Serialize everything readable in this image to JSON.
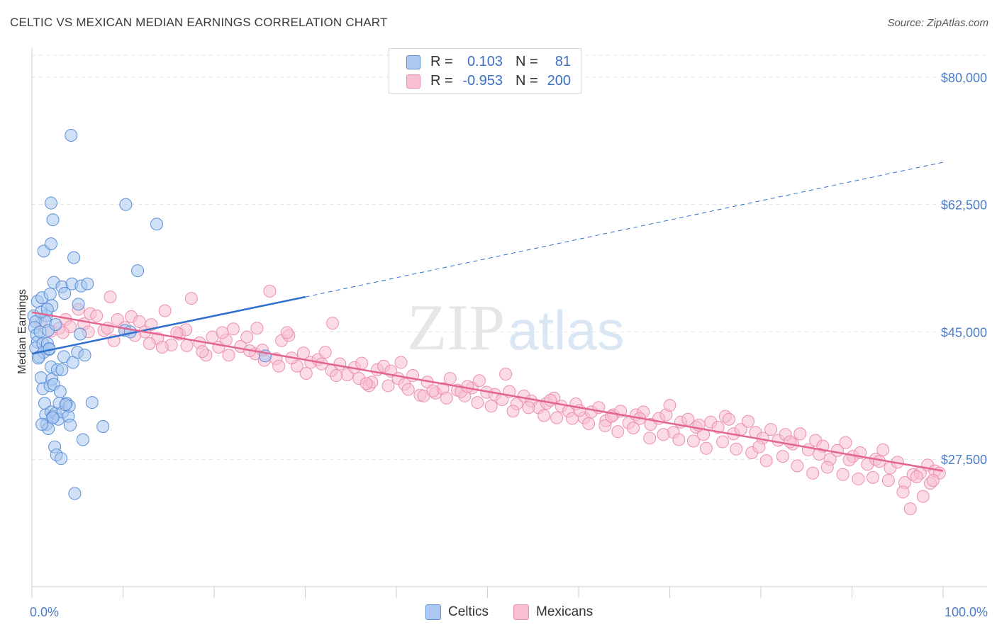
{
  "header": {
    "title": "CELTIC VS MEXICAN MEDIAN EARNINGS CORRELATION CHART",
    "source": "Source: ZipAtlas.com"
  },
  "colors": {
    "celtics_fill": "#aac8f0",
    "celtics_stroke": "#5b8fd6",
    "celtics_line": "#2f6fce",
    "mexicans_fill": "#f7bfd0",
    "mexicans_stroke": "#ec8fae",
    "mexicans_line": "#e2648f",
    "axis_text": "#4a7cc7",
    "grid": "#e3e3e3"
  },
  "legend": {
    "rows": [
      {
        "r_label": "R =",
        "r_value": "0.103",
        "n_label": "N =",
        "n_value": "81"
      },
      {
        "r_label": "R =",
        "r_value": "-0.953",
        "n_label": "N =",
        "n_value": "200"
      }
    ]
  },
  "bottom_legend": [
    "Celtics",
    "Mexicans"
  ],
  "watermark": {
    "zip": "ZIP",
    "atlas": "atlas"
  },
  "chart_data": {
    "type": "scatter",
    "xlabel": "",
    "ylabel": "Median Earnings",
    "xlim": [
      0,
      100
    ],
    "ylim": [
      10000,
      83000
    ],
    "x_tick_labels": [
      "0.0%",
      "100.0%"
    ],
    "y_ticks": [
      27500,
      45000,
      62500,
      80000
    ],
    "y_tick_labels": [
      "$27,500",
      "$45,000",
      "$62,500",
      "$80,000"
    ],
    "grid": "horizontal dashed",
    "legend_placement": "top-center",
    "series": [
      {
        "name": "Celtics",
        "r": 0.103,
        "n": 81,
        "trend": {
          "x": [
            0,
            30
          ],
          "y": [
            42000,
            49800
          ],
          "extended_to": [
            100,
            68300
          ]
        },
        "points": [
          [
            0.2,
            47.2
          ],
          [
            0.4,
            46.4
          ],
          [
            0.3,
            45.6
          ],
          [
            0.5,
            44.6
          ],
          [
            0.6,
            43.6
          ],
          [
            0.4,
            42.8
          ],
          [
            0.8,
            41.6
          ],
          [
            0.6,
            49.2
          ],
          [
            1.1,
            49.7
          ],
          [
            0.9,
            45.0
          ],
          [
            1.2,
            43.4
          ],
          [
            1.3,
            42.2
          ],
          [
            1.0,
            38.7
          ],
          [
            1.2,
            37.2
          ],
          [
            1.3,
            56.1
          ],
          [
            1.6,
            47.2
          ],
          [
            1.5,
            46.4
          ],
          [
            1.8,
            45.2
          ],
          [
            1.7,
            43.4
          ],
          [
            1.9,
            42.6
          ],
          [
            2.1,
            40.2
          ],
          [
            1.4,
            35.2
          ],
          [
            1.5,
            33.6
          ],
          [
            1.6,
            32.3
          ],
          [
            1.8,
            31.7
          ],
          [
            2.0,
            37.6
          ],
          [
            2.2,
            38.5
          ],
          [
            2.4,
            37.8
          ],
          [
            2.1,
            34.0
          ],
          [
            2.3,
            33.4
          ],
          [
            2.6,
            33.8
          ],
          [
            2.8,
            39.8
          ],
          [
            2.0,
            50.2
          ],
          [
            2.2,
            48.6
          ],
          [
            2.6,
            46.0
          ],
          [
            2.1,
            57.1
          ],
          [
            2.3,
            60.4
          ],
          [
            2.1,
            62.7
          ],
          [
            2.4,
            51.8
          ],
          [
            2.5,
            29.2
          ],
          [
            2.7,
            28.1
          ],
          [
            2.9,
            33.0
          ],
          [
            3.0,
            35.2
          ],
          [
            3.1,
            36.8
          ],
          [
            3.3,
            39.8
          ],
          [
            3.5,
            41.6
          ],
          [
            3.3,
            51.2
          ],
          [
            3.6,
            50.3
          ],
          [
            3.2,
            27.6
          ],
          [
            3.4,
            34.0
          ],
          [
            3.8,
            35.2
          ],
          [
            4.0,
            33.4
          ],
          [
            4.2,
            32.2
          ],
          [
            4.1,
            34.8
          ],
          [
            4.4,
            51.6
          ],
          [
            4.5,
            40.8
          ],
          [
            4.6,
            55.2
          ],
          [
            4.7,
            22.8
          ],
          [
            5.0,
            42.2
          ],
          [
            5.1,
            48.8
          ],
          [
            5.3,
            44.7
          ],
          [
            5.6,
            30.2
          ],
          [
            5.4,
            51.3
          ],
          [
            5.8,
            41.8
          ],
          [
            6.1,
            51.6
          ],
          [
            6.6,
            35.3
          ],
          [
            7.8,
            32.0
          ],
          [
            4.3,
            72.0
          ],
          [
            10.2,
            45.2
          ],
          [
            10.3,
            62.5
          ],
          [
            10.8,
            45.0
          ],
          [
            13.7,
            59.8
          ],
          [
            11.6,
            53.4
          ],
          [
            25.6,
            41.7
          ],
          [
            1.0,
            47.7
          ],
          [
            1.7,
            48.1
          ],
          [
            0.7,
            41.4
          ],
          [
            1.9,
            42.7
          ],
          [
            2.3,
            33.2
          ],
          [
            3.7,
            35.0
          ],
          [
            1.1,
            32.3
          ]
        ]
      },
      {
        "name": "Mexicans",
        "r": -0.953,
        "n": 200,
        "trend": {
          "x": [
            0,
            100
          ],
          "y": [
            47700,
            25900
          ]
        },
        "points": [
          [
            1.0,
            46.3
          ],
          [
            2.1,
            45.1
          ],
          [
            3.0,
            45.5
          ],
          [
            3.7,
            46.7
          ],
          [
            4.2,
            45.7
          ],
          [
            5.1,
            48.1
          ],
          [
            5.7,
            46.1
          ],
          [
            6.4,
            47.5
          ],
          [
            7.1,
            47.2
          ],
          [
            7.9,
            45.2
          ],
          [
            8.6,
            49.8
          ],
          [
            9.4,
            46.7
          ],
          [
            10.2,
            45.6
          ],
          [
            10.9,
            47.1
          ],
          [
            11.8,
            46.4
          ],
          [
            12.4,
            45.0
          ],
          [
            13.1,
            46.0
          ],
          [
            13.8,
            44.1
          ],
          [
            14.6,
            47.9
          ],
          [
            15.3,
            43.2
          ],
          [
            16.2,
            44.7
          ],
          [
            16.9,
            45.3
          ],
          [
            17.5,
            49.6
          ],
          [
            18.4,
            43.5
          ],
          [
            19.1,
            41.8
          ],
          [
            19.8,
            44.3
          ],
          [
            20.5,
            42.9
          ],
          [
            21.3,
            43.9
          ],
          [
            22.1,
            45.4
          ],
          [
            22.9,
            43.0
          ],
          [
            23.6,
            44.3
          ],
          [
            24.5,
            42.0
          ],
          [
            25.3,
            42.5
          ],
          [
            26.1,
            50.6
          ],
          [
            26.8,
            41.3
          ],
          [
            27.4,
            43.8
          ],
          [
            28.2,
            44.5
          ],
          [
            29.1,
            40.3
          ],
          [
            29.8,
            42.1
          ],
          [
            30.6,
            40.8
          ],
          [
            31.4,
            41.2
          ],
          [
            32.2,
            42.2
          ],
          [
            32.9,
            39.7
          ],
          [
            33.8,
            40.6
          ],
          [
            34.6,
            39.1
          ],
          [
            35.4,
            40.1
          ],
          [
            36.2,
            40.7
          ],
          [
            37.0,
            37.6
          ],
          [
            37.9,
            39.8
          ],
          [
            38.6,
            40.3
          ],
          [
            39.4,
            39.6
          ],
          [
            40.2,
            38.6
          ],
          [
            40.9,
            37.8
          ],
          [
            41.8,
            39.0
          ],
          [
            42.6,
            36.3
          ],
          [
            43.4,
            38.1
          ],
          [
            44.3,
            36.6
          ],
          [
            45.1,
            37.2
          ],
          [
            45.9,
            38.6
          ],
          [
            46.7,
            37.0
          ],
          [
            47.5,
            36.2
          ],
          [
            48.3,
            37.3
          ],
          [
            49.1,
            38.3
          ],
          [
            49.9,
            36.7
          ],
          [
            50.8,
            36.4
          ],
          [
            51.6,
            35.7
          ],
          [
            52.4,
            36.8
          ],
          [
            53.2,
            35.1
          ],
          [
            54.0,
            36.2
          ],
          [
            54.8,
            35.5
          ],
          [
            55.6,
            34.6
          ],
          [
            56.5,
            35.2
          ],
          [
            57.3,
            35.9
          ],
          [
            58.1,
            34.8
          ],
          [
            58.9,
            34.1
          ],
          [
            59.7,
            35.1
          ],
          [
            60.6,
            33.2
          ],
          [
            61.4,
            34.0
          ],
          [
            62.2,
            34.6
          ],
          [
            63.0,
            32.8
          ],
          [
            63.8,
            33.6
          ],
          [
            64.6,
            34.1
          ],
          [
            65.5,
            32.5
          ],
          [
            66.3,
            33.6
          ],
          [
            67.1,
            34.0
          ],
          [
            67.9,
            32.3
          ],
          [
            68.8,
            33.1
          ],
          [
            69.6,
            33.6
          ],
          [
            70.4,
            31.2
          ],
          [
            71.2,
            32.6
          ],
          [
            72.0,
            33.0
          ],
          [
            72.9,
            31.9
          ],
          [
            73.7,
            30.9
          ],
          [
            74.5,
            32.6
          ],
          [
            75.3,
            31.9
          ],
          [
            76.1,
            33.4
          ],
          [
            77.0,
            31.0
          ],
          [
            77.8,
            31.6
          ],
          [
            78.6,
            32.7
          ],
          [
            79.4,
            31.2
          ],
          [
            80.2,
            30.4
          ],
          [
            81.1,
            31.6
          ],
          [
            81.9,
            30.1
          ],
          [
            82.7,
            30.9
          ],
          [
            83.5,
            29.6
          ],
          [
            84.3,
            31.0
          ],
          [
            85.2,
            28.8
          ],
          [
            86.0,
            30.1
          ],
          [
            86.8,
            29.3
          ],
          [
            87.6,
            27.5
          ],
          [
            88.4,
            28.7
          ],
          [
            89.3,
            29.8
          ],
          [
            90.1,
            27.9
          ],
          [
            90.9,
            28.4
          ],
          [
            91.7,
            26.8
          ],
          [
            92.6,
            27.5
          ],
          [
            93.4,
            28.8
          ],
          [
            94.2,
            26.3
          ],
          [
            95.0,
            27.1
          ],
          [
            95.8,
            24.3
          ],
          [
            96.7,
            25.4
          ],
          [
            97.5,
            25.6
          ],
          [
            98.3,
            26.7
          ],
          [
            99.1,
            25.9
          ],
          [
            3.4,
            44.9
          ],
          [
            6.2,
            45.0
          ],
          [
            8.3,
            45.5
          ],
          [
            11.3,
            44.5
          ],
          [
            12.9,
            43.4
          ],
          [
            14.3,
            42.9
          ],
          [
            17.0,
            43.1
          ],
          [
            18.7,
            42.3
          ],
          [
            21.6,
            41.8
          ],
          [
            23.9,
            42.4
          ],
          [
            25.5,
            41.1
          ],
          [
            27.1,
            40.3
          ],
          [
            28.5,
            41.4
          ],
          [
            30.1,
            39.3
          ],
          [
            31.8,
            40.6
          ],
          [
            33.4,
            39.0
          ],
          [
            35.9,
            38.6
          ],
          [
            37.3,
            38.1
          ],
          [
            39.1,
            37.6
          ],
          [
            41.3,
            37.1
          ],
          [
            43.0,
            36.2
          ],
          [
            45.5,
            35.9
          ],
          [
            47.1,
            36.8
          ],
          [
            48.9,
            35.3
          ],
          [
            50.4,
            34.8
          ],
          [
            52.8,
            34.1
          ],
          [
            54.5,
            34.6
          ],
          [
            56.2,
            33.5
          ],
          [
            57.6,
            33.2
          ],
          [
            59.3,
            33.1
          ],
          [
            61.1,
            32.4
          ],
          [
            62.9,
            32.1
          ],
          [
            64.3,
            31.3
          ],
          [
            66.0,
            31.8
          ],
          [
            67.8,
            30.4
          ],
          [
            69.3,
            30.9
          ],
          [
            71.0,
            30.2
          ],
          [
            72.6,
            30.0
          ],
          [
            74.0,
            29.0
          ],
          [
            75.8,
            29.9
          ],
          [
            77.3,
            28.9
          ],
          [
            79.0,
            28.4
          ],
          [
            80.6,
            27.3
          ],
          [
            82.4,
            27.9
          ],
          [
            84.0,
            26.6
          ],
          [
            85.7,
            25.6
          ],
          [
            87.3,
            26.4
          ],
          [
            89.0,
            25.4
          ],
          [
            90.7,
            24.8
          ],
          [
            92.3,
            25.0
          ],
          [
            94.0,
            24.6
          ],
          [
            95.6,
            23.0
          ],
          [
            97.1,
            25.1
          ],
          [
            98.6,
            24.2
          ],
          [
            99.6,
            25.6
          ],
          [
            9.0,
            43.8
          ],
          [
            15.9,
            44.9
          ],
          [
            20.9,
            44.9
          ],
          [
            24.7,
            45.5
          ],
          [
            28.0,
            44.9
          ],
          [
            33.0,
            46.2
          ],
          [
            36.7,
            37.9
          ],
          [
            40.5,
            40.8
          ],
          [
            44.0,
            36.9
          ],
          [
            47.8,
            37.5
          ],
          [
            52.0,
            39.2
          ],
          [
            56.9,
            35.6
          ],
          [
            60.1,
            34.2
          ],
          [
            63.6,
            33.4
          ],
          [
            66.7,
            33.1
          ],
          [
            70.0,
            34.9
          ],
          [
            73.2,
            32.2
          ],
          [
            76.5,
            33.0
          ],
          [
            79.8,
            29.2
          ],
          [
            83.2,
            29.9
          ],
          [
            86.4,
            28.2
          ],
          [
            89.7,
            27.4
          ],
          [
            93.0,
            27.2
          ],
          [
            96.4,
            20.7
          ],
          [
            97.8,
            22.4
          ],
          [
            98.9,
            24.6
          ]
        ]
      }
    ]
  }
}
